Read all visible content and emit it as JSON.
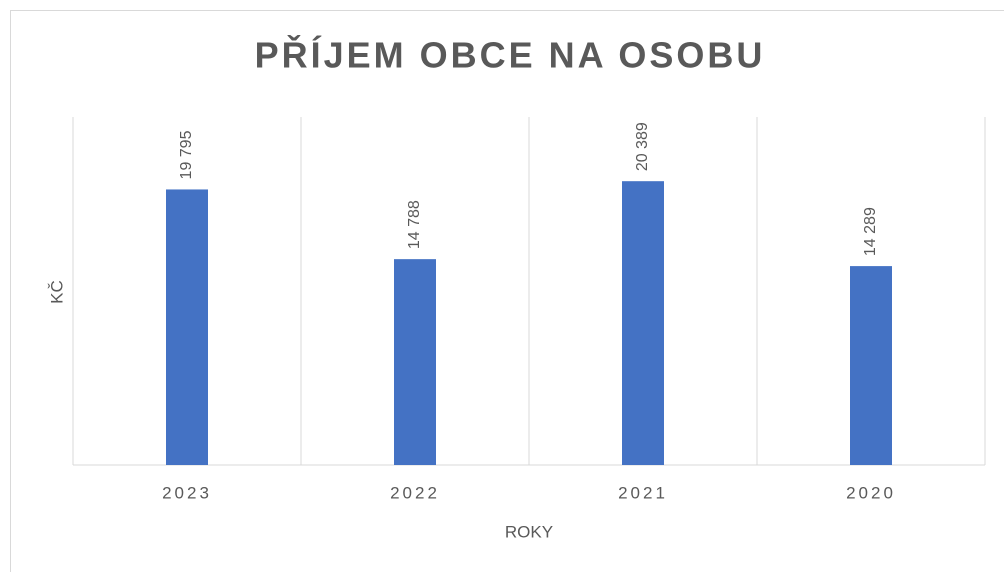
{
  "chart_data": {
    "type": "bar",
    "title": "PŘÍJEM OBCE NA OSOBU",
    "x_label": "ROKY",
    "y_label": "KČ",
    "categories": [
      "2023",
      "2022",
      "2021",
      "2020"
    ],
    "values": [
      19795,
      14788,
      20389,
      14289
    ],
    "value_labels": [
      "19 795",
      "14 788",
      "20 389",
      "14 289"
    ],
    "color": "#4472c4",
    "ylim": [
      0,
      25000
    ]
  }
}
